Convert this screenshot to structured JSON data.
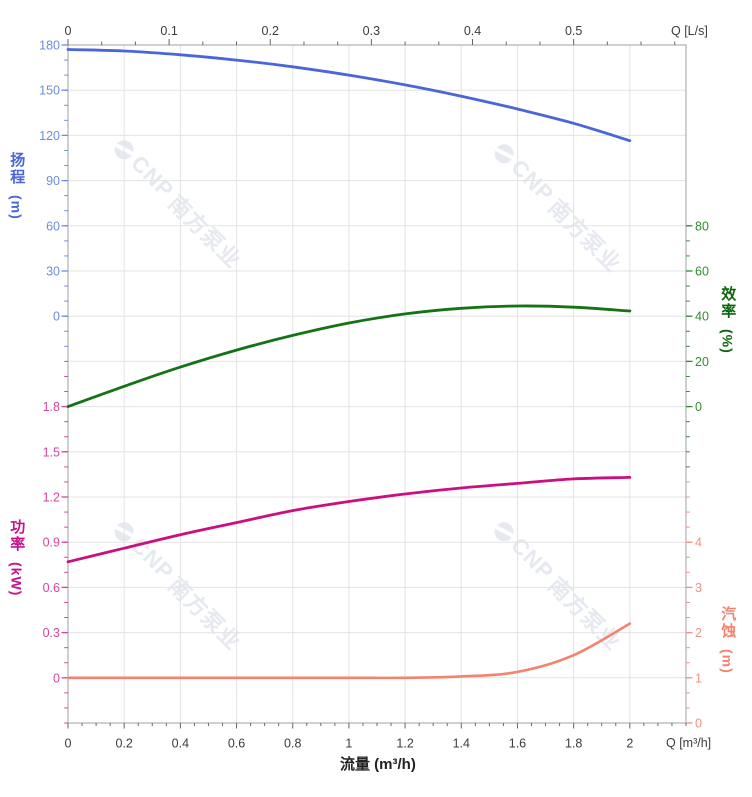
{
  "watermark": {
    "brand": "CNP",
    "company": "南方泵业",
    "color": "#e6e9f0"
  },
  "chart_data": {
    "type": "line",
    "title": "",
    "grid": true,
    "legend": false,
    "x": {
      "label": "流量 (m³/h)",
      "unit_top": "Q [L/s]",
      "unit_bottom": "Q [m³/h]",
      "tick_color": "#3c3c3c",
      "bottom_ticks": [
        "0",
        "0.2",
        "0.4",
        "0.6",
        "0.8",
        "1",
        "1.2",
        "1.4",
        "1.6",
        "1.8",
        "2"
      ],
      "bottom_tick_values": [
        0,
        0.2,
        0.4,
        0.6,
        0.8,
        1,
        1.2,
        1.4,
        1.6,
        1.8,
        2
      ],
      "top_ticks": [
        "0",
        "0.1",
        "0.2",
        "0.3",
        "0.4",
        "0.5"
      ],
      "top_tick_values_ls": [
        0,
        0.1,
        0.2,
        0.3,
        0.4,
        0.5
      ],
      "range_m3h": [
        0,
        2.2
      ]
    },
    "y_axes": [
      {
        "name": "head",
        "label": "扬程",
        "unit": "(m)",
        "side": "left",
        "color": "#4a66d8",
        "tick_color": "#6c8ce4",
        "ticks": [
          "180",
          "150",
          "120",
          "90",
          "60",
          "30",
          "0"
        ],
        "tick_values": [
          180,
          150,
          120,
          90,
          60,
          30,
          0
        ],
        "range": [
          0,
          180
        ]
      },
      {
        "name": "efficiency",
        "label": "效率",
        "unit": "(%)",
        "side": "right",
        "color": "#0d650d",
        "tick_color": "#2f8f2f",
        "ticks": [
          "80",
          "60",
          "40",
          "20",
          "0"
        ],
        "tick_values": [
          80,
          60,
          40,
          20,
          0
        ],
        "range": [
          0,
          80
        ]
      },
      {
        "name": "power",
        "label": "功率",
        "unit": "(kW)",
        "side": "left",
        "color": "#c4148c",
        "tick_color": "#d8459f",
        "ticks": [
          "1.8",
          "1.5",
          "1.2",
          "0.9",
          "0.6",
          "0.3",
          "0"
        ],
        "tick_values": [
          1.8,
          1.5,
          1.2,
          0.9,
          0.6,
          0.3,
          0
        ],
        "range": [
          0,
          1.8
        ]
      },
      {
        "name": "npsh",
        "label": "汽蚀",
        "unit": "(m)",
        "side": "right",
        "color": "#f5826e",
        "tick_color": "#f5917f",
        "ticks": [
          "4",
          "3",
          "2",
          "1",
          "0"
        ],
        "tick_values": [
          4,
          3,
          2,
          1,
          0
        ],
        "range": [
          0,
          4
        ]
      }
    ],
    "series": [
      {
        "name": "扬程 (Head)",
        "axis": "head",
        "color": "#4a66d8",
        "width": 2.8,
        "points": [
          [
            0,
            177
          ],
          [
            0.2,
            176
          ],
          [
            0.4,
            173.5
          ],
          [
            0.6,
            170
          ],
          [
            0.8,
            165.5
          ],
          [
            1,
            160
          ],
          [
            1.2,
            153.5
          ],
          [
            1.4,
            146
          ],
          [
            1.6,
            137.5
          ],
          [
            1.8,
            128
          ],
          [
            2,
            116.5
          ]
        ]
      },
      {
        "name": "效率 (Efficiency)",
        "axis": "efficiency",
        "color": "#147314",
        "width": 2.8,
        "points": [
          [
            0,
            0
          ],
          [
            0.2,
            9
          ],
          [
            0.4,
            17.5
          ],
          [
            0.6,
            25
          ],
          [
            0.8,
            31.5
          ],
          [
            1,
            37
          ],
          [
            1.2,
            41
          ],
          [
            1.4,
            43.5
          ],
          [
            1.6,
            44.5
          ],
          [
            1.8,
            44
          ],
          [
            2,
            42.3
          ]
        ]
      },
      {
        "name": "功率 (Power)",
        "axis": "power",
        "color": "#ca0f80",
        "width": 2.8,
        "points": [
          [
            0,
            0.77
          ],
          [
            0.2,
            0.86
          ],
          [
            0.4,
            0.95
          ],
          [
            0.6,
            1.03
          ],
          [
            0.8,
            1.11
          ],
          [
            1,
            1.17
          ],
          [
            1.2,
            1.22
          ],
          [
            1.4,
            1.26
          ],
          [
            1.6,
            1.29
          ],
          [
            1.8,
            1.32
          ],
          [
            2,
            1.33
          ]
        ]
      },
      {
        "name": "汽蚀 (NPSH)",
        "axis": "npsh",
        "color": "#f5826e",
        "width": 2.6,
        "points": [
          [
            0,
            1
          ],
          [
            0.2,
            1
          ],
          [
            0.4,
            1
          ],
          [
            0.6,
            1
          ],
          [
            0.8,
            1
          ],
          [
            1,
            1
          ],
          [
            1.2,
            1
          ],
          [
            1.4,
            1.03
          ],
          [
            1.6,
            1.13
          ],
          [
            1.8,
            1.5
          ],
          [
            2,
            2.2
          ]
        ]
      }
    ],
    "colors": {
      "grid": "#e3e3e3",
      "frame": "#b0b0b0",
      "top_bottom_ticks": "#666666"
    }
  }
}
